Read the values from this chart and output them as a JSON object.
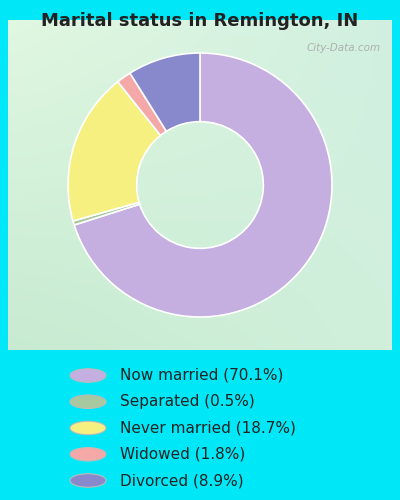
{
  "title": "Marital status in Remington, IN",
  "slices": [
    70.1,
    0.5,
    18.7,
    1.8,
    8.9
  ],
  "labels": [
    "Now married (70.1%)",
    "Separated (0.5%)",
    "Never married (18.7%)",
    "Widowed (1.8%)",
    "Divorced (8.9%)"
  ],
  "colors": [
    "#c5aee0",
    "#a8c8a0",
    "#f5f080",
    "#f5a8a8",
    "#8888cc"
  ],
  "bg_outer": "#00e8f8",
  "title_fontsize": 13,
  "legend_fontsize": 11,
  "watermark": "City-Data.com",
  "start_angle": 90,
  "donut_width": 0.52,
  "chart_bg_tl": [
    0.88,
    0.97,
    0.88
  ],
  "chart_bg_tr": [
    0.82,
    0.94,
    0.88
  ],
  "chart_bg_bl": [
    0.78,
    0.92,
    0.82
  ],
  "chart_bg_br": [
    0.82,
    0.94,
    0.86
  ]
}
